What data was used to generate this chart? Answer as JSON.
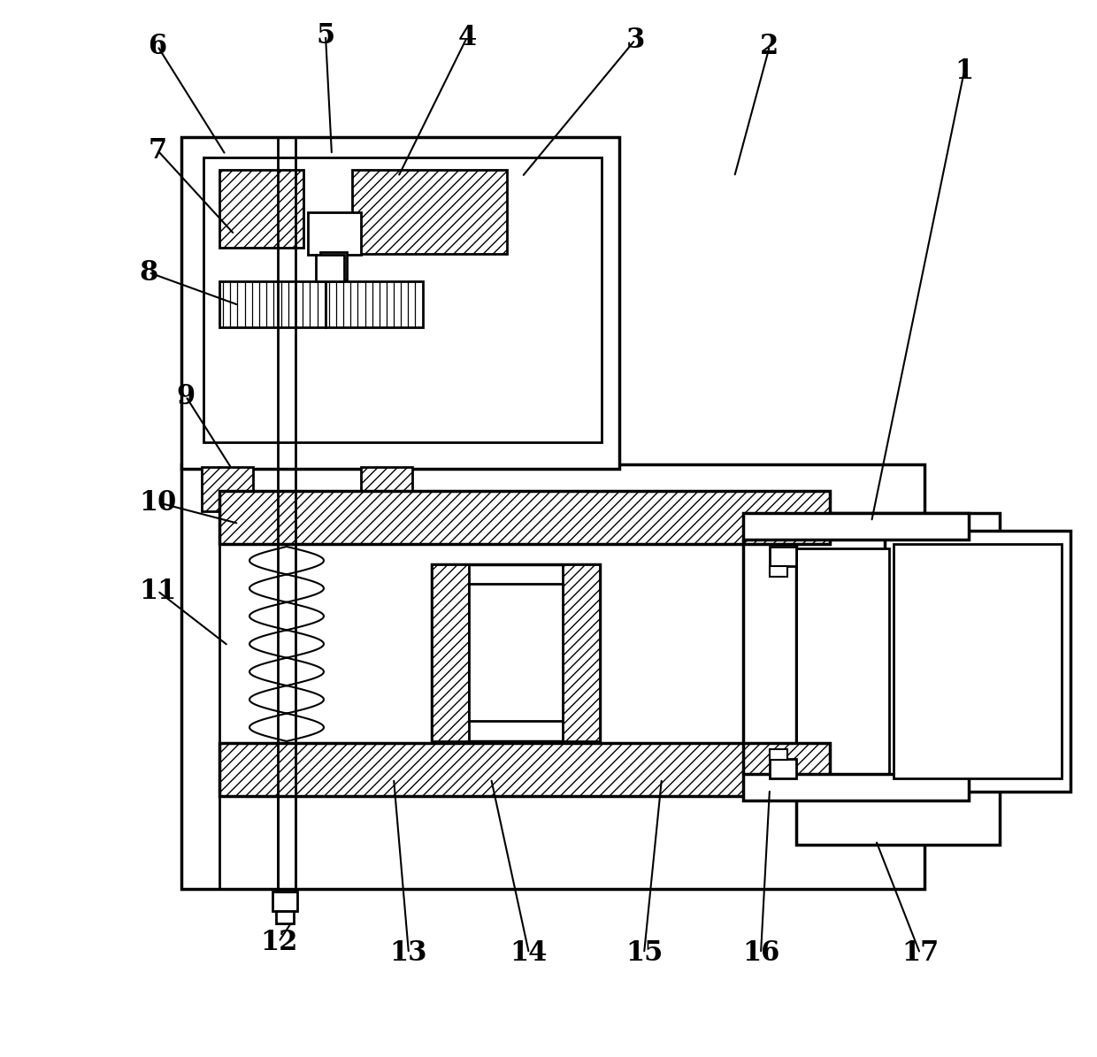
{
  "bg_color": "#ffffff",
  "line_color": "#000000",
  "fig_width": 12.4,
  "fig_height": 11.95,
  "leaders": [
    [
      "1",
      1090,
      80,
      985,
      590
    ],
    [
      "2",
      870,
      52,
      830,
      200
    ],
    [
      "3",
      718,
      45,
      590,
      200
    ],
    [
      "4",
      528,
      42,
      450,
      200
    ],
    [
      "5",
      368,
      40,
      375,
      175
    ],
    [
      "6",
      178,
      52,
      255,
      175
    ],
    [
      "7",
      178,
      170,
      265,
      265
    ],
    [
      "8",
      168,
      308,
      270,
      345
    ],
    [
      "9",
      210,
      448,
      262,
      530
    ],
    [
      "10",
      178,
      568,
      270,
      592
    ],
    [
      "11",
      178,
      668,
      258,
      730
    ],
    [
      "12",
      315,
      1065,
      330,
      1042
    ],
    [
      "13",
      462,
      1078,
      445,
      880
    ],
    [
      "14",
      598,
      1078,
      555,
      880
    ],
    [
      "15",
      728,
      1078,
      748,
      880
    ],
    [
      "16",
      860,
      1078,
      870,
      892
    ],
    [
      "17",
      1040,
      1078,
      990,
      950
    ]
  ]
}
